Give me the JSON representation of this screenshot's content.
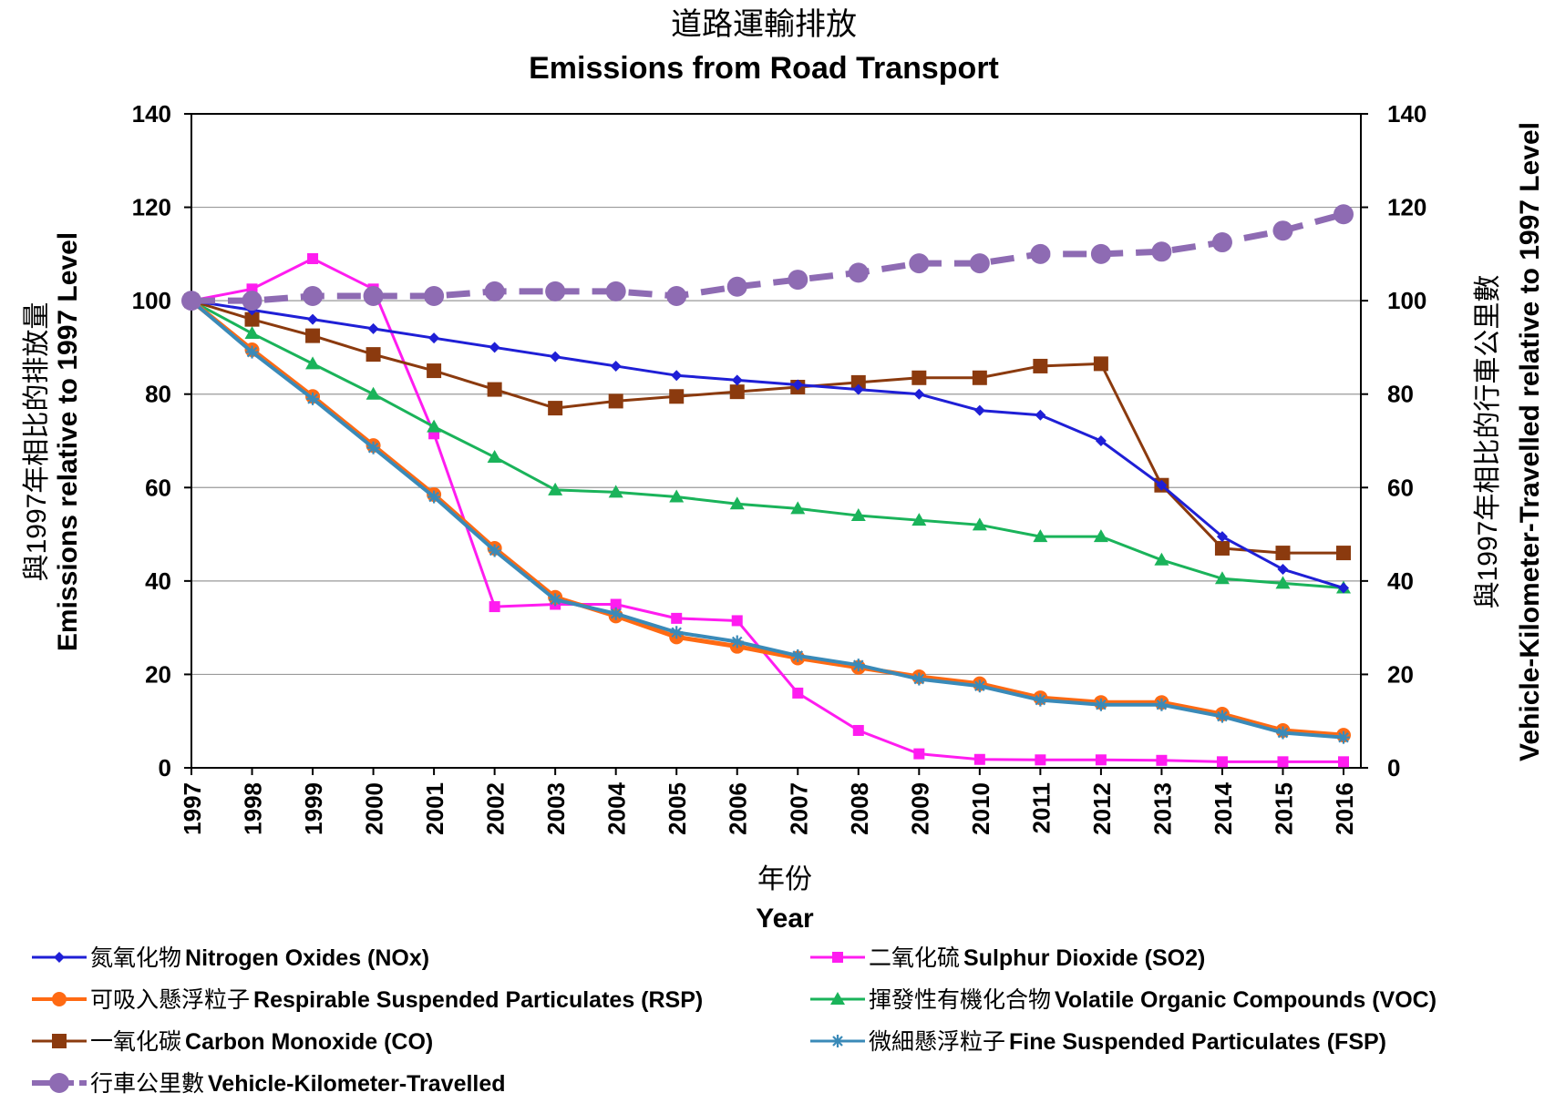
{
  "chart_data": {
    "type": "line",
    "title_zh": "道路運輸排放",
    "title": "Emissions from Road Transport",
    "xlabel_zh": "年份",
    "xlabel": "Year",
    "ylabel_zh": "與1997年相比的排放量",
    "ylabel": "Emissions relative to 1997 Level",
    "y2label_zh": "與1997年相比的行車公里數",
    "y2label": "Vehicle-Kilometer-Travelled relative to 1997 Level",
    "ylim": [
      0,
      140
    ],
    "y2lim": [
      0,
      140
    ],
    "yticks": [
      "0",
      "20",
      "40",
      "60",
      "80",
      "100",
      "120",
      "140"
    ],
    "grid": true,
    "categories": [
      "1997",
      "1998",
      "1999",
      "2000",
      "2001",
      "2002",
      "2003",
      "2004",
      "2005",
      "2006",
      "2007",
      "2008",
      "2009",
      "2010",
      "2011",
      "2012",
      "2013",
      "2014",
      "2015",
      "2016"
    ],
    "series": [
      {
        "key": "nox",
        "name_zh": "氮氧化物",
        "name": "Nitrogen Oxides (NOx)",
        "color": "#1f1fd6",
        "marker": "diamond",
        "dashed": false,
        "width": 3,
        "values": [
          100,
          98,
          96,
          94,
          92,
          90,
          88,
          86,
          84,
          83,
          82,
          81,
          80,
          76.5,
          75.5,
          70,
          60.5,
          49.5,
          42.5,
          38.5
        ]
      },
      {
        "key": "so2",
        "name_zh": "二氧化硫",
        "name": "Sulphur Dioxide (SO2)",
        "color": "#ff1cf0",
        "marker": "square-small",
        "dashed": false,
        "width": 3,
        "values": [
          100,
          102.5,
          109,
          102.5,
          71.5,
          34.5,
          35,
          35,
          32,
          31.5,
          16,
          8,
          3,
          1.8,
          1.7,
          1.7,
          1.6,
          1.3,
          1.3,
          1.3
        ]
      },
      {
        "key": "rsp",
        "name_zh": "可吸入懸浮粒子",
        "name": "Respirable Suspended Particulates (RSP)",
        "color": "#ff6a13",
        "marker": "circle",
        "dashed": false,
        "width": 5,
        "values": [
          100,
          89.5,
          79.5,
          69,
          58.5,
          47,
          36.5,
          32.5,
          28,
          26,
          23.5,
          21.5,
          19.5,
          18,
          15,
          14,
          14,
          11.5,
          8,
          7
        ]
      },
      {
        "key": "voc",
        "name_zh": "揮發性有機化合物",
        "name": "Volatile Organic Compounds (VOC)",
        "color": "#1ab35a",
        "marker": "triangle",
        "dashed": false,
        "width": 3,
        "values": [
          100,
          93,
          86.5,
          80,
          73,
          66.5,
          59.5,
          59,
          58,
          56.5,
          55.5,
          54,
          53,
          52,
          49.5,
          49.5,
          44.5,
          40.5,
          39.5,
          38.5
        ]
      },
      {
        "key": "co",
        "name_zh": "一氧化碳",
        "name": "Carbon Monoxide (CO)",
        "color": "#8b3a0e",
        "marker": "square",
        "dashed": false,
        "width": 3,
        "values": [
          100,
          96,
          92.5,
          88.5,
          85,
          81,
          77,
          78.5,
          79.5,
          80.5,
          81.5,
          82.5,
          83.5,
          83.5,
          86,
          86.5,
          60.5,
          47,
          46,
          46
        ]
      },
      {
        "key": "fsp",
        "name_zh": "微細懸浮粒子",
        "name": "Fine Suspended Particulates (FSP)",
        "color": "#3a8ab8",
        "marker": "star",
        "dashed": false,
        "width": 4,
        "values": [
          100,
          89,
          79,
          68.5,
          58,
          46.5,
          36,
          33,
          29,
          27,
          24,
          22,
          19,
          17.5,
          14.5,
          13.5,
          13.5,
          11,
          7.5,
          6.5
        ]
      },
      {
        "key": "vkt",
        "name_zh": "行車公里數",
        "name": "Vehicle-Kilometer-Travelled",
        "color": "#8e6bb3",
        "marker": "circle-big",
        "dashed": true,
        "width": 7,
        "values": [
          100,
          100,
          101,
          101,
          101,
          102,
          102,
          102,
          101,
          103,
          104.5,
          106,
          108,
          108,
          110,
          110,
          110.5,
          112.5,
          115,
          118.5
        ]
      }
    ]
  }
}
